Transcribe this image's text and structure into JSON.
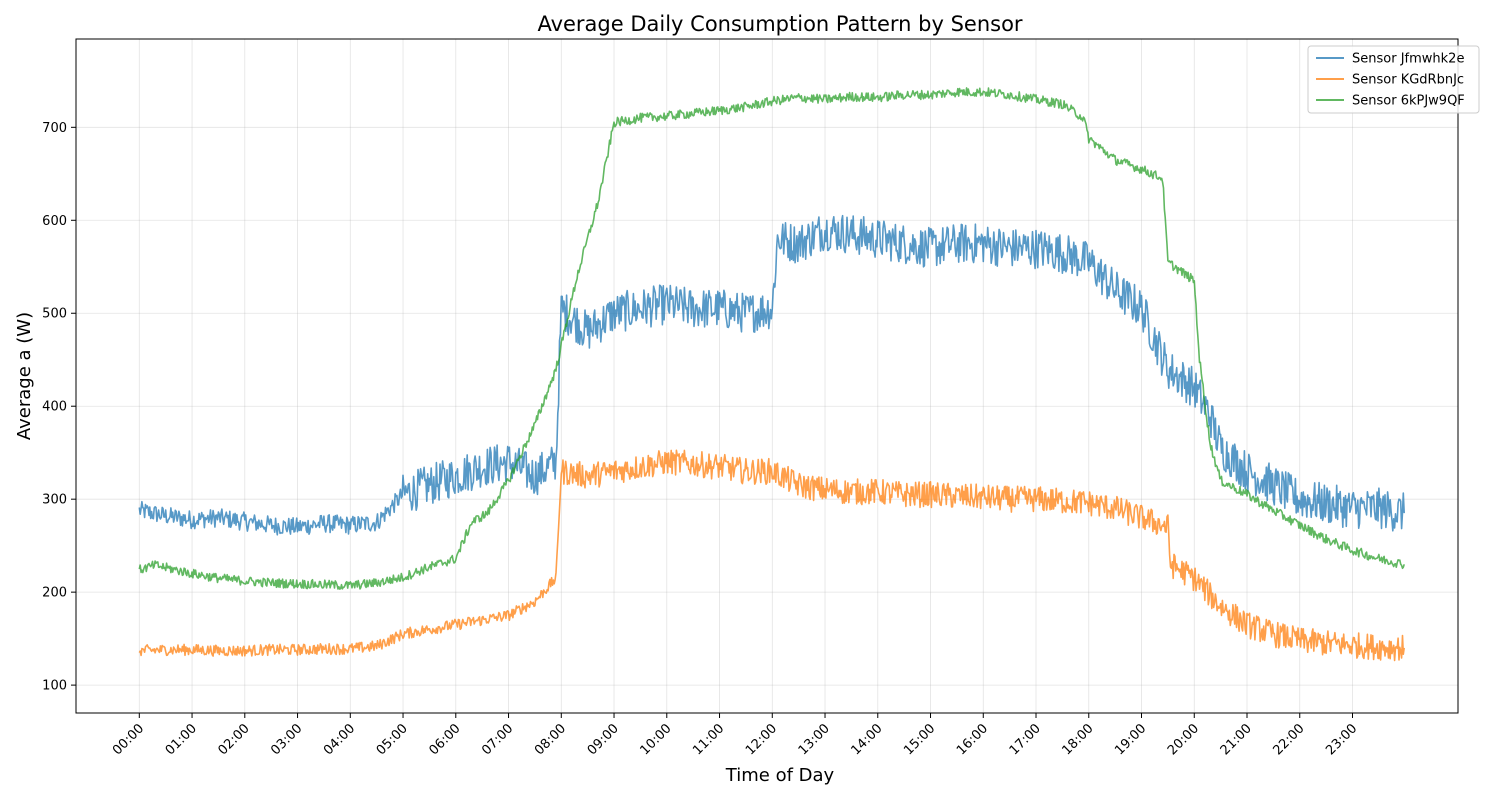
{
  "chart_data": {
    "type": "line",
    "title": "Average Daily Consumption Pattern by Sensor",
    "xlabel": "Time of Day",
    "ylabel": "Average a (W)",
    "x_unit": "hours",
    "xlim": [
      -1.2,
      25
    ],
    "ylim": [
      70,
      795
    ],
    "yticks": [
      100,
      200,
      300,
      400,
      500,
      600,
      700
    ],
    "xticks": [
      {
        "x": 0,
        "label": "00:00"
      },
      {
        "x": 1,
        "label": "01:00"
      },
      {
        "x": 2,
        "label": "02:00"
      },
      {
        "x": 3,
        "label": "03:00"
      },
      {
        "x": 4,
        "label": "04:00"
      },
      {
        "x": 5,
        "label": "05:00"
      },
      {
        "x": 6,
        "label": "06:00"
      },
      {
        "x": 7,
        "label": "07:00"
      },
      {
        "x": 8,
        "label": "08:00"
      },
      {
        "x": 9,
        "label": "09:00"
      },
      {
        "x": 10,
        "label": "10:00"
      },
      {
        "x": 11,
        "label": "11:00"
      },
      {
        "x": 12,
        "label": "12:00"
      },
      {
        "x": 13,
        "label": "13:00"
      },
      {
        "x": 14,
        "label": "14:00"
      },
      {
        "x": 15,
        "label": "15:00"
      },
      {
        "x": 16,
        "label": "16:00"
      },
      {
        "x": 17,
        "label": "17:00"
      },
      {
        "x": 18,
        "label": "18:00"
      },
      {
        "x": 19,
        "label": "19:00"
      },
      {
        "x": 20,
        "label": "20:00"
      },
      {
        "x": 21,
        "label": "21:00"
      },
      {
        "x": 22,
        "label": "22:00"
      },
      {
        "x": 23,
        "label": "23:00"
      }
    ],
    "grid": true,
    "legend_position": "top-right",
    "series": [
      {
        "name": "Sensor Jfmwhk2e",
        "color": "#1f77b4",
        "x": [
          0,
          0.5,
          1,
          1.5,
          2,
          2.5,
          3,
          3.5,
          4,
          4.5,
          5,
          5.5,
          6,
          6.5,
          7,
          7.5,
          7.9,
          8,
          8.5,
          9,
          9.5,
          10,
          10.5,
          11,
          11.5,
          12,
          12.1,
          12.5,
          13,
          13.5,
          14,
          14.5,
          15,
          15.5,
          16,
          16.5,
          17,
          17.5,
          18,
          18.5,
          19,
          19.5,
          20,
          20.3,
          20.5,
          21,
          21.5,
          22,
          22.5,
          23,
          23.5,
          23.98
        ],
        "y": [
          288,
          282,
          278,
          280,
          276,
          272,
          270,
          274,
          272,
          275,
          305,
          315,
          325,
          335,
          340,
          325,
          340,
          505,
          480,
          500,
          505,
          510,
          505,
          505,
          500,
          505,
          580,
          575,
          590,
          585,
          580,
          575,
          570,
          575,
          575,
          570,
          570,
          565,
          555,
          525,
          505,
          440,
          420,
          390,
          355,
          330,
          315,
          300,
          295,
          290,
          290,
          285
        ]
      },
      {
        "name": "Sensor KGdRbnJc",
        "color": "#ff7f0e",
        "x": [
          0,
          0.5,
          1,
          1.5,
          2,
          2.5,
          3,
          3.5,
          4,
          4.5,
          5,
          5.5,
          6,
          6.5,
          7,
          7.5,
          7.9,
          8,
          8.5,
          9,
          9.5,
          10,
          10.5,
          11,
          11.5,
          12,
          12.5,
          13,
          13.5,
          14,
          14.5,
          15,
          15.5,
          16,
          16.5,
          17,
          17.5,
          18,
          18.5,
          19,
          19.5,
          19.55,
          20,
          20.5,
          21,
          21.5,
          22,
          22.5,
          23,
          23.5,
          23.98
        ],
        "y": [
          137,
          138,
          138,
          137,
          137,
          138,
          138,
          139,
          139,
          142,
          155,
          160,
          165,
          170,
          175,
          190,
          215,
          330,
          325,
          330,
          335,
          340,
          338,
          335,
          330,
          330,
          315,
          310,
          308,
          308,
          305,
          305,
          303,
          302,
          300,
          300,
          298,
          296,
          290,
          280,
          270,
          230,
          215,
          185,
          165,
          155,
          148,
          145,
          143,
          141,
          140
        ]
      },
      {
        "name": "Sensor 6kPJw9QF",
        "color": "#2ca02c",
        "x": [
          0,
          0.3,
          1,
          1.5,
          2,
          2.5,
          3,
          3.5,
          4,
          4.5,
          5,
          5.5,
          6,
          6.3,
          6.6,
          7,
          7.5,
          7.9,
          8.3,
          8.7,
          9,
          9.5,
          10,
          10.5,
          11,
          11.5,
          12,
          12.5,
          13,
          13.5,
          14,
          14.5,
          15,
          15.5,
          16,
          16.5,
          17,
          17.5,
          17.9,
          18,
          18.5,
          19,
          19.4,
          19.5,
          20,
          20.1,
          20.3,
          20.5,
          21,
          21.5,
          22,
          22.5,
          23,
          23.5,
          23.98
        ],
        "y": [
          224,
          229,
          220,
          215,
          212,
          210,
          209,
          208,
          207,
          210,
          216,
          227,
          236,
          275,
          285,
          320,
          380,
          440,
          540,
          620,
          705,
          710,
          712,
          715,
          718,
          722,
          728,
          732,
          730,
          733,
          732,
          735,
          735,
          738,
          738,
          735,
          730,
          725,
          710,
          688,
          665,
          655,
          645,
          555,
          535,
          450,
          360,
          320,
          305,
          288,
          272,
          257,
          245,
          236,
          230
        ]
      }
    ]
  }
}
